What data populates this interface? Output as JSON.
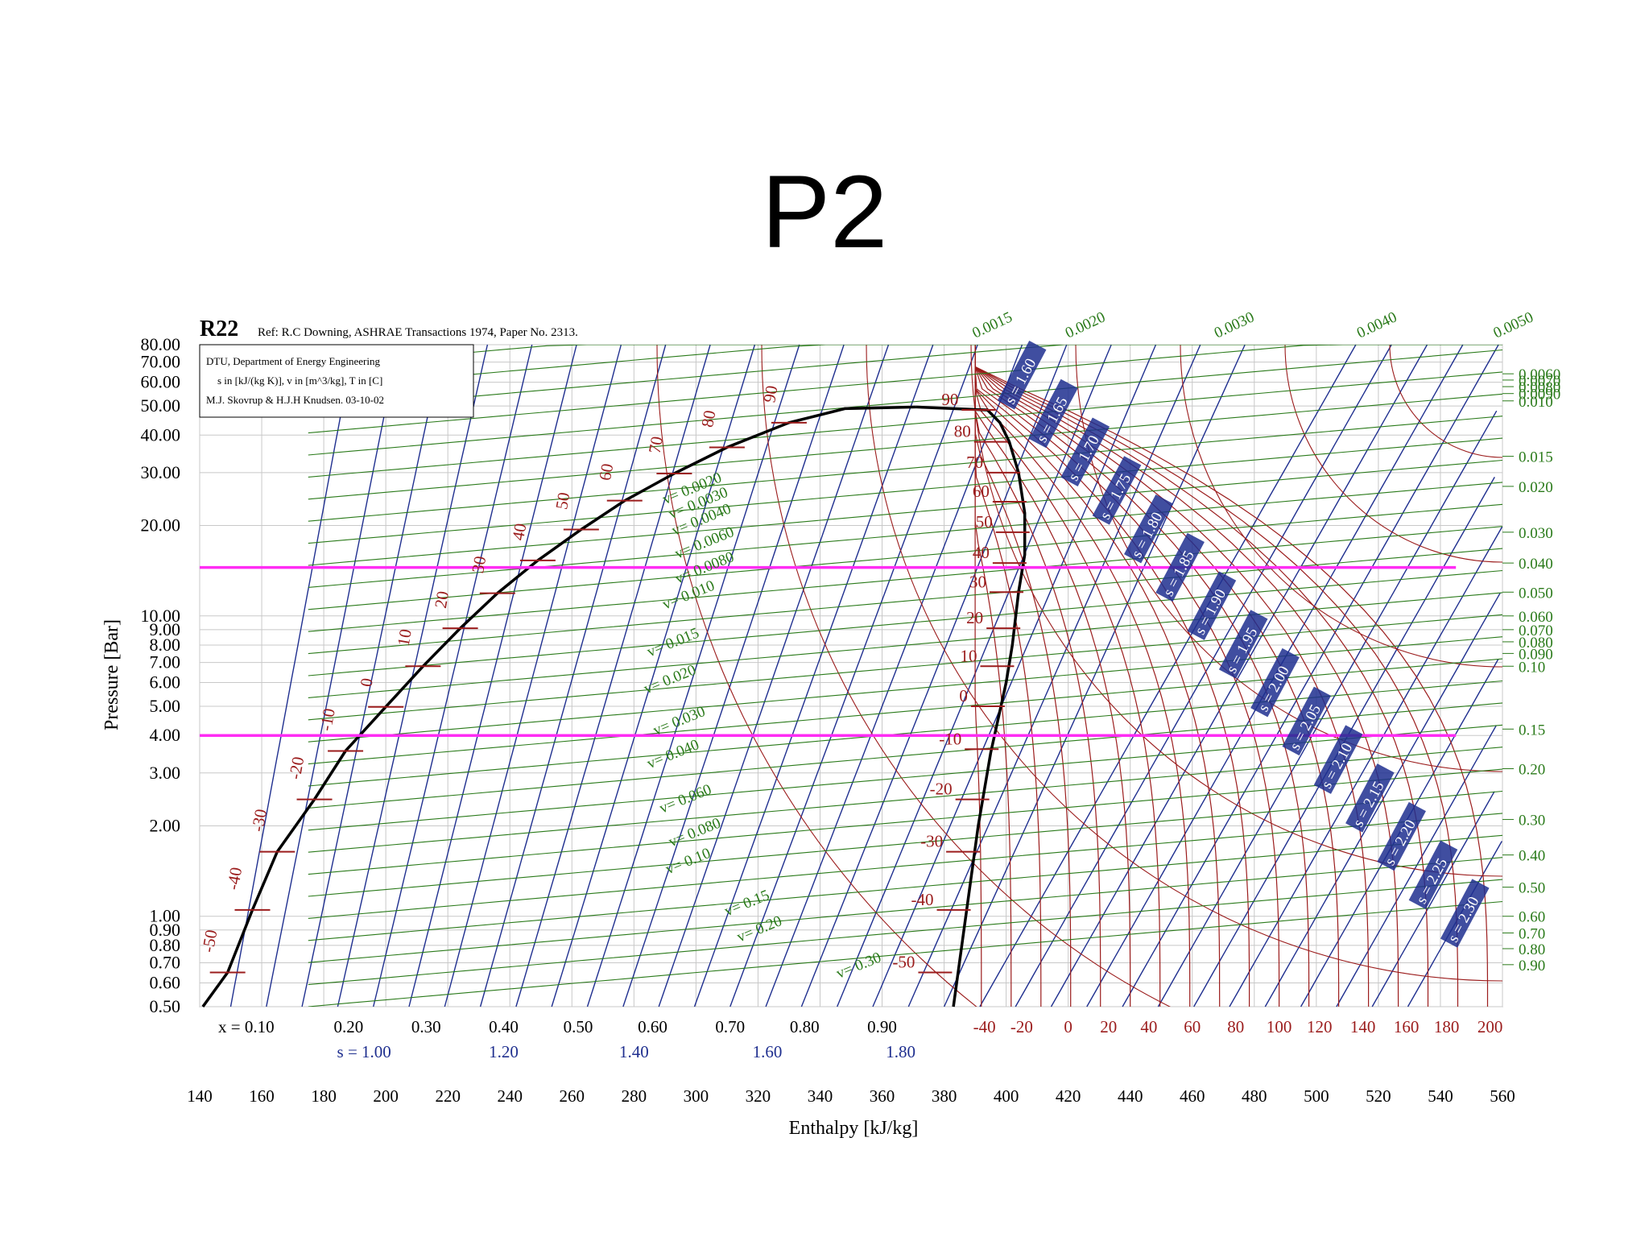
{
  "slide": {
    "title": "P2"
  },
  "chart_data": {
    "type": "line",
    "title": "R22",
    "subtitle": "Ref: R.C Downing, ASHRAE Transactions 1974, Paper No. 2313.",
    "info_box": [
      "DTU, Department of Energy Engineering",
      "s in [kJ/(kg K)], v in [m^3/kg], T in [C]",
      "M.J. Skovrup & H.J.H Knudsen. 03-10-02"
    ],
    "xlabel": "Enthalpy [kJ/kg]",
    "ylabel": "Pressure [Bar]",
    "xlim": [
      140,
      560
    ],
    "ylim": [
      0.5,
      80
    ],
    "yscale": "log",
    "grid": true,
    "x_ticks": [
      "140",
      "160",
      "180",
      "200",
      "220",
      "240",
      "260",
      "280",
      "300",
      "320",
      "340",
      "360",
      "380",
      "400",
      "420",
      "440",
      "460",
      "480",
      "500",
      "520",
      "540",
      "560"
    ],
    "y_ticks": [
      {
        "label": "80.00",
        "v": 80
      },
      {
        "label": "70.00",
        "v": 70
      },
      {
        "label": "60.00",
        "v": 60
      },
      {
        "label": "50.00",
        "v": 50
      },
      {
        "label": "40.00",
        "v": 40
      },
      {
        "label": "30.00",
        "v": 30
      },
      {
        "label": "20.00",
        "v": 20
      },
      {
        "label": "10.00",
        "v": 10
      },
      {
        "label": "9.00",
        "v": 9
      },
      {
        "label": "8.00",
        "v": 8
      },
      {
        "label": "7.00",
        "v": 7
      },
      {
        "label": "6.00",
        "v": 6
      },
      {
        "label": "5.00",
        "v": 5
      },
      {
        "label": "4.00",
        "v": 4
      },
      {
        "label": "3.00",
        "v": 3
      },
      {
        "label": "2.00",
        "v": 2
      },
      {
        "label": "1.00",
        "v": 1
      },
      {
        "label": "0.90",
        "v": 0.9
      },
      {
        "label": "0.80",
        "v": 0.8
      },
      {
        "label": "0.70",
        "v": 0.7
      },
      {
        "label": "0.60",
        "v": 0.6
      },
      {
        "label": "0.50",
        "v": 0.5
      }
    ],
    "quality_labels": [
      {
        "label": "x = 0.10",
        "h": 155
      },
      {
        "label": "0.20",
        "h": 188
      },
      {
        "label": "0.30",
        "h": 213
      },
      {
        "label": "0.40",
        "h": 238
      },
      {
        "label": "0.50",
        "h": 262
      },
      {
        "label": "0.60",
        "h": 286
      },
      {
        "label": "0.70",
        "h": 311
      },
      {
        "label": "0.80",
        "h": 335
      },
      {
        "label": "0.90",
        "h": 360
      }
    ],
    "entropy_bottom_labels": [
      {
        "label": "s = 1.00",
        "h": 193
      },
      {
        "label": "1.20",
        "h": 238
      },
      {
        "label": "1.40",
        "h": 280
      },
      {
        "label": "1.60",
        "h": 323
      },
      {
        "label": "1.80",
        "h": 366
      }
    ],
    "temperature_bottom_labels": [
      {
        "label": "-40",
        "h": 393
      },
      {
        "label": "-20",
        "h": 405
      },
      {
        "label": "0",
        "h": 420
      },
      {
        "label": "20",
        "h": 433
      },
      {
        "label": "40",
        "h": 446
      },
      {
        "label": "60",
        "h": 460
      },
      {
        "label": "80",
        "h": 474
      },
      {
        "label": "100",
        "h": 488
      },
      {
        "label": "120",
        "h": 501
      },
      {
        "label": "140",
        "h": 515
      },
      {
        "label": "160",
        "h": 529
      },
      {
        "label": "180",
        "h": 542
      },
      {
        "label": "200",
        "h": 556
      }
    ],
    "saturated_liquid_temp_labels": [
      {
        "label": "-50",
        "h": 149,
        "p": 0.65
      },
      {
        "label": "-40",
        "h": 157,
        "p": 1.05
      },
      {
        "label": "-30",
        "h": 165,
        "p": 1.64
      },
      {
        "label": "-20",
        "h": 177,
        "p": 2.45
      },
      {
        "label": "-10",
        "h": 187,
        "p": 3.55
      },
      {
        "label": "0",
        "h": 200,
        "p": 4.98
      },
      {
        "label": "10",
        "h": 212,
        "p": 6.8
      },
      {
        "label": "20",
        "h": 224,
        "p": 9.1
      },
      {
        "label": "30",
        "h": 236,
        "p": 11.9
      },
      {
        "label": "40",
        "h": 249,
        "p": 15.3
      },
      {
        "label": "50",
        "h": 263,
        "p": 19.4
      },
      {
        "label": "60",
        "h": 277,
        "p": 24.2
      },
      {
        "label": "70",
        "h": 293,
        "p": 29.8
      },
      {
        "label": "80",
        "h": 310,
        "p": 36.4
      },
      {
        "label": "90",
        "h": 330,
        "p": 44.0
      }
    ],
    "saturated_vapor_temp_labels": [
      {
        "label": "90",
        "h": 395,
        "p": 48.5
      },
      {
        "label": "80",
        "h": 399,
        "p": 38.0
      },
      {
        "label": "70",
        "h": 403,
        "p": 30.0
      },
      {
        "label": "60",
        "h": 405,
        "p": 24.0
      },
      {
        "label": "50",
        "h": 406,
        "p": 19.0
      },
      {
        "label": "40",
        "h": 405,
        "p": 15.0
      },
      {
        "label": "30",
        "h": 404,
        "p": 12.0
      },
      {
        "label": "20",
        "h": 403,
        "p": 9.1
      },
      {
        "label": "10",
        "h": 401,
        "p": 6.8
      },
      {
        "label": "0",
        "h": 398,
        "p": 5.0
      },
      {
        "label": "-10",
        "h": 396,
        "p": 3.6
      },
      {
        "label": "-20",
        "h": 393,
        "p": 2.45
      },
      {
        "label": "-30",
        "h": 390,
        "p": 1.64
      },
      {
        "label": "-40",
        "h": 387,
        "p": 1.05
      },
      {
        "label": "-50",
        "h": 381,
        "p": 0.65
      }
    ],
    "volume_labels_inside": [
      {
        "label": "v= 0.0020",
        "h": 290,
        "p": 23.5
      },
      {
        "label": "v= 0.0030",
        "h": 292,
        "p": 21.0
      },
      {
        "label": "v= 0.0040",
        "h": 293,
        "p": 18.5
      },
      {
        "label": "v= 0.0060",
        "h": 294,
        "p": 15.5
      },
      {
        "label": "v= 0.0080",
        "h": 294,
        "p": 12.8
      },
      {
        "label": "v= 0.010",
        "h": 290,
        "p": 10.5
      },
      {
        "label": "v= 0.015",
        "h": 285,
        "p": 7.3
      },
      {
        "label": "v= 0.020",
        "h": 284,
        "p": 5.5
      },
      {
        "label": "v= 0.030",
        "h": 287,
        "p": 4.0
      },
      {
        "label": "v= 0.040",
        "h": 285,
        "p": 3.1
      },
      {
        "label": "v= 0.060",
        "h": 289,
        "p": 2.2
      },
      {
        "label": "v= 0.080",
        "h": 292,
        "p": 1.7
      },
      {
        "label": "v= 0.10",
        "h": 291,
        "p": 1.38
      },
      {
        "label": "v= 0.15",
        "h": 310,
        "p": 1.0
      },
      {
        "label": "v= 0.20",
        "h": 314,
        "p": 0.82
      },
      {
        "label": "v= 0.30",
        "h": 346,
        "p": 0.62
      }
    ],
    "volume_labels_right": [
      "0.0060",
      "0.0070",
      "0.0080",
      "0.0090",
      "0.010",
      "0.015",
      "0.020",
      "0.030",
      "0.040",
      "0.050",
      "0.060",
      "0.070",
      "0.080",
      "0.090",
      "0.10",
      "0.15",
      "0.20",
      "0.30",
      "0.40",
      "0.50",
      "0.60",
      "0.70",
      "0.80",
      "0.90"
    ],
    "volume_labels_top": [
      "0.0015",
      "0.0020",
      "0.0030",
      "0.0040",
      "0.0050"
    ],
    "entropy_diag_labels": [
      "s = 1.60",
      "s = 1.65",
      "s = 1.70",
      "s = 1.75",
      "s = 1.80",
      "s = 1.85",
      "s = 1.90",
      "s = 1.95",
      "s = 2.00",
      "s = 2.05",
      "s = 2.10",
      "s = 2.15",
      "s = 2.20",
      "s = 2.25",
      "s = 2.30"
    ],
    "saturation_dome": {
      "liquid": [
        [
          141,
          0.5
        ],
        [
          149,
          0.65
        ],
        [
          157,
          1.05
        ],
        [
          165,
          1.64
        ],
        [
          177,
          2.45
        ],
        [
          187,
          3.55
        ],
        [
          200,
          4.98
        ],
        [
          212,
          6.8
        ],
        [
          224,
          9.1
        ],
        [
          236,
          11.9
        ],
        [
          249,
          15.3
        ],
        [
          263,
          19.4
        ],
        [
          277,
          24.2
        ],
        [
          293,
          29.8
        ],
        [
          310,
          36.4
        ],
        [
          330,
          44.0
        ],
        [
          348,
          49.0
        ]
      ],
      "vapor": [
        [
          383,
          0.5
        ],
        [
          387,
          1.0
        ],
        [
          391,
          2.0
        ],
        [
          395,
          3.5
        ],
        [
          400,
          6.0
        ],
        [
          402,
          8.0
        ],
        [
          404,
          12.0
        ],
        [
          406,
          16.0
        ],
        [
          406,
          22.0
        ],
        [
          404,
          30.0
        ],
        [
          401,
          38.0
        ],
        [
          398,
          44.0
        ],
        [
          394,
          48.5
        ]
      ],
      "critical_h": 371
    },
    "series": [
      {
        "name": "",
        "color": "#ff2cf4",
        "x": [
          140,
          545
        ],
        "y": [
          14.5,
          14.5
        ]
      },
      {
        "name": "",
        "color": "#ff2cf4",
        "x": [
          140,
          545
        ],
        "y": [
          4.0,
          4.0
        ]
      }
    ],
    "colors": {
      "grid": "#c8c8c8",
      "blue": "#1f2f8f",
      "red": "#9b1c1c",
      "green": "#2a7a1a",
      "magenta": "#ff2cf4",
      "dome": "#000000"
    }
  }
}
